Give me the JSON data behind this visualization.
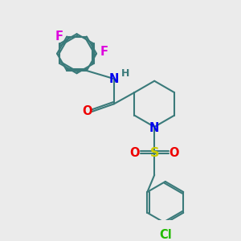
{
  "bg_color": "#ebebeb",
  "bond_color": "#3a7a7a",
  "atom_colors": {
    "N": "#0000ee",
    "O": "#ee0000",
    "S": "#cccc00",
    "F": "#dd00dd",
    "Cl": "#22bb00",
    "H": "#3a7a7a",
    "C": "#3a7a7a"
  },
  "font_size": 10.5,
  "lw": 1.5
}
